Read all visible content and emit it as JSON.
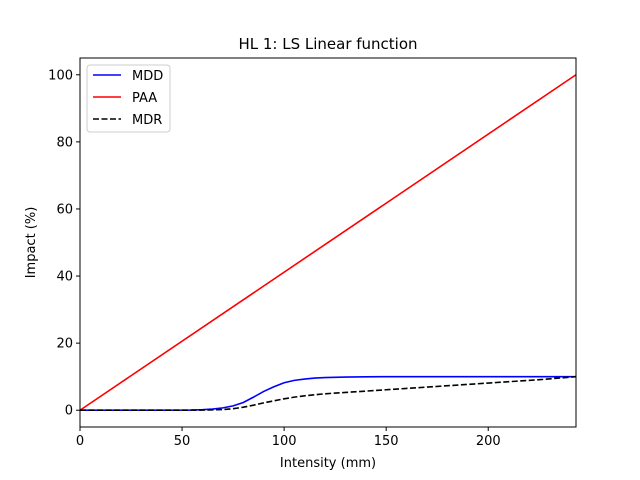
{
  "chart_data": {
    "type": "line",
    "title": "HL 1: LS Linear function",
    "xlabel": "Intensity (mm)",
    "ylabel": "Impact (%)",
    "xlim": [
      0,
      243
    ],
    "ylim": [
      -5,
      105
    ],
    "xticks": [
      0,
      50,
      100,
      150,
      200
    ],
    "yticks": [
      0,
      20,
      40,
      60,
      80,
      100
    ],
    "grid": false,
    "legend_location": "upper-left",
    "series": [
      {
        "name": "MDD",
        "color": "#0000ff",
        "style": "solid",
        "x": [
          0,
          40,
          55,
          60,
          65,
          70,
          75,
          80,
          85,
          90,
          95,
          100,
          105,
          110,
          115,
          120,
          130,
          140,
          150,
          175,
          200,
          225,
          243
        ],
        "y": [
          0,
          0,
          0.05,
          0.15,
          0.35,
          0.7,
          1.3,
          2.3,
          3.9,
          5.6,
          7.0,
          8.2,
          8.9,
          9.3,
          9.6,
          9.75,
          9.9,
          9.95,
          10,
          10,
          10,
          10,
          10
        ]
      },
      {
        "name": "PAA",
        "color": "#ff0000",
        "style": "solid",
        "x": [
          0,
          243
        ],
        "y": [
          0,
          100
        ]
      },
      {
        "name": "MDR",
        "color": "#000000",
        "style": "dashed",
        "x": [
          0,
          40,
          60,
          70,
          75,
          80,
          85,
          90,
          95,
          100,
          105,
          110,
          115,
          120,
          130,
          140,
          150,
          160,
          175,
          200,
          225,
          243
        ],
        "y": [
          0,
          0,
          0.05,
          0.2,
          0.45,
          0.9,
          1.5,
          2.2,
          2.8,
          3.4,
          3.9,
          4.3,
          4.6,
          4.9,
          5.3,
          5.7,
          6.1,
          6.5,
          7.1,
          8.1,
          9.1,
          10
        ]
      }
    ]
  }
}
